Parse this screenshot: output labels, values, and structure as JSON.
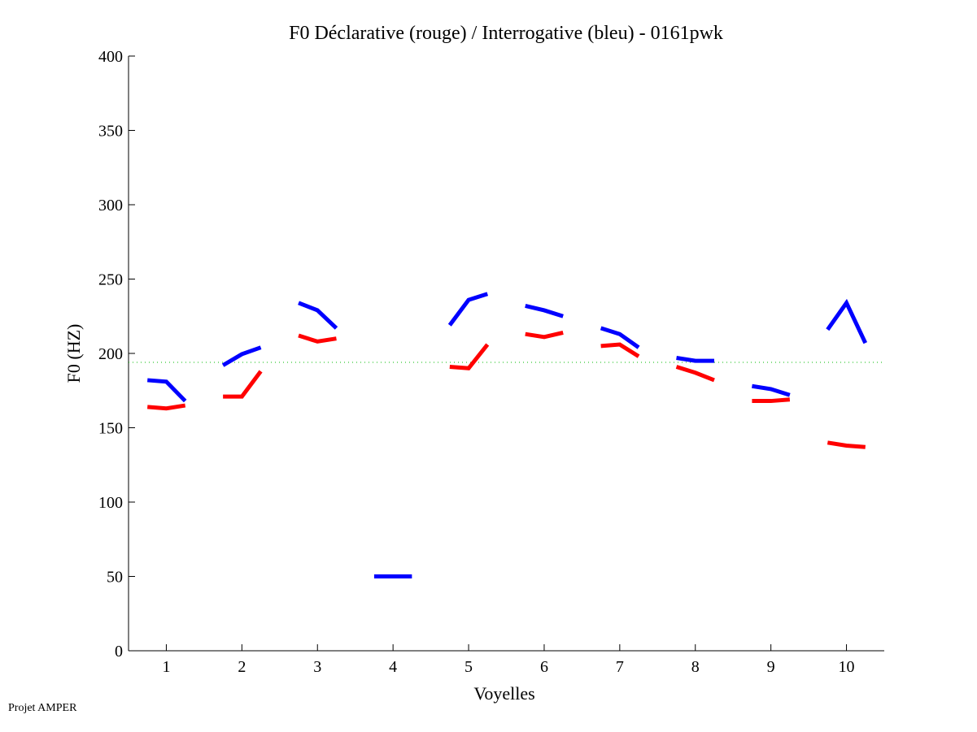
{
  "chart_data": {
    "type": "line",
    "title": "F0 Déclarative (rouge) / Interrogative (bleu) - 0161pwk",
    "xlabel": "Voyelles",
    "ylabel": "F0 (HZ)",
    "xlim": [
      0.5,
      10.5
    ],
    "ylim": [
      0,
      400
    ],
    "xticks": [
      1,
      2,
      3,
      4,
      5,
      6,
      7,
      8,
      9,
      10
    ],
    "yticks": [
      0,
      50,
      100,
      150,
      200,
      250,
      300,
      350,
      400
    ],
    "grid": false,
    "reference_line": {
      "y": 194,
      "color": "#00bb00",
      "style": "dotted"
    },
    "point_offsets": [
      -0.25,
      0,
      0.25
    ],
    "series": [
      {
        "name": "Interrogative (bleu)",
        "color": "#0000ff",
        "segments": [
          [
            182,
            181,
            168
          ],
          [
            192,
            199.5,
            204
          ],
          [
            234,
            229,
            217
          ],
          [
            50,
            50,
            50
          ],
          [
            219,
            236,
            240
          ],
          [
            232,
            229,
            225
          ],
          [
            217,
            213,
            204
          ],
          [
            197,
            195,
            195
          ],
          [
            178,
            176,
            172
          ],
          [
            216,
            234,
            207
          ]
        ]
      },
      {
        "name": "Déclarative (rouge)",
        "color": "#ff0000",
        "segments": [
          [
            164,
            163,
            165
          ],
          [
            171,
            171,
            188
          ],
          [
            212,
            208,
            210
          ],
          null,
          [
            191,
            190,
            206
          ],
          [
            213,
            211,
            214
          ],
          [
            205,
            206,
            198
          ],
          [
            191,
            187,
            182
          ],
          [
            168,
            168,
            169
          ],
          [
            140,
            138,
            137
          ]
        ]
      }
    ]
  },
  "footer": "Projet AMPER"
}
